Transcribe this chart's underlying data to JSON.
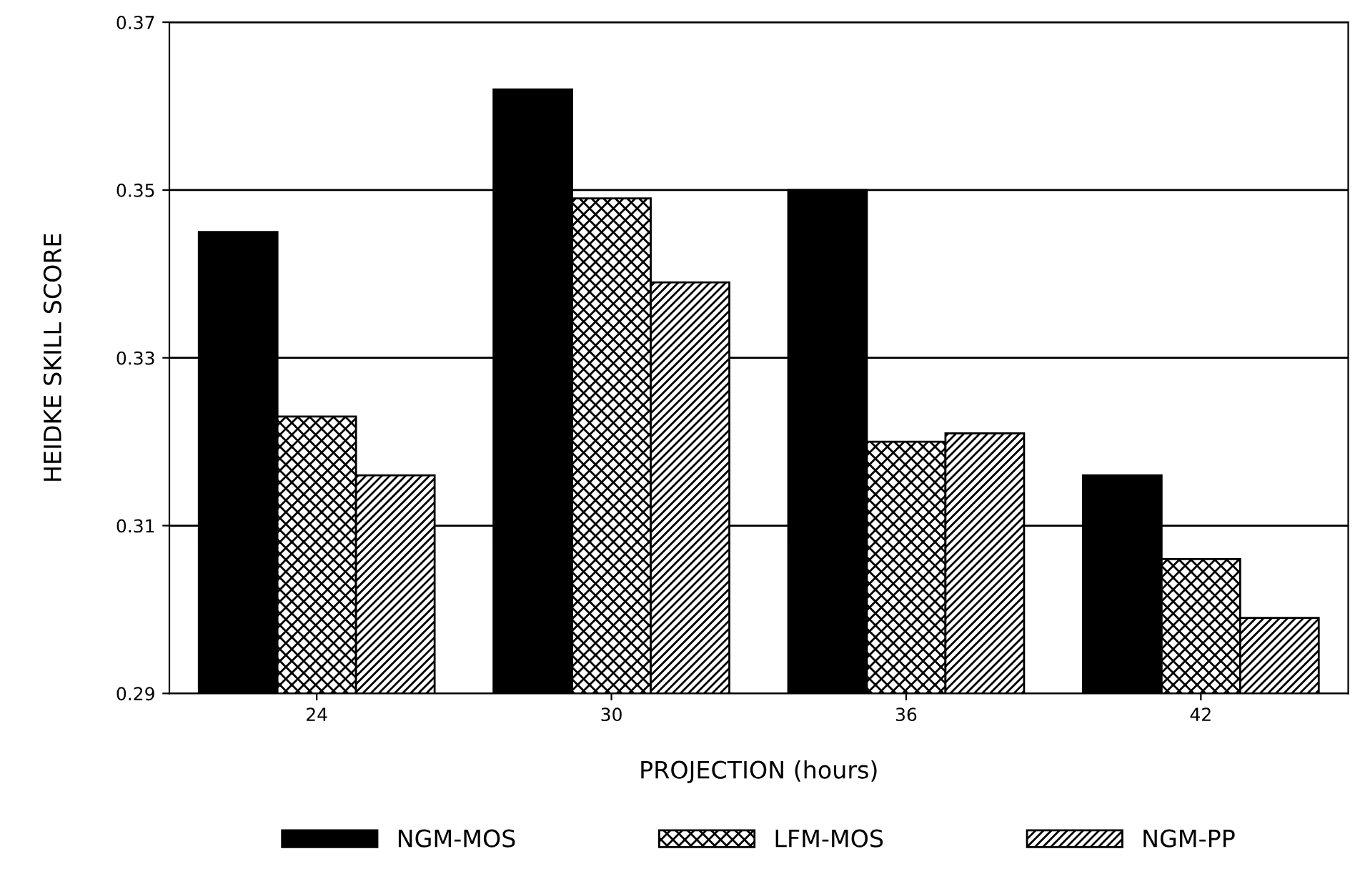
{
  "chart_data": {
    "type": "bar",
    "xlabel": "PROJECTION (hours)",
    "ylabel": "HEIDKE SKILL SCORE",
    "categories": [
      "24",
      "30",
      "36",
      "42"
    ],
    "series": [
      {
        "name": "NGM-MOS",
        "color": "#000000",
        "values": [
          0.345,
          0.362,
          0.35,
          0.316
        ]
      },
      {
        "name": "LFM-MOS",
        "color": "#000000",
        "values": [
          0.323,
          0.349,
          0.32,
          0.306
        ]
      },
      {
        "name": "NGM-PP",
        "color": "#000000",
        "values": [
          0.316,
          0.339,
          0.321,
          0.299
        ]
      }
    ],
    "ylim": [
      0.29,
      0.37
    ],
    "yticks": [
      0.29,
      0.31,
      0.33,
      0.35,
      0.37
    ],
    "grid": "y",
    "legend": "bottom"
  }
}
